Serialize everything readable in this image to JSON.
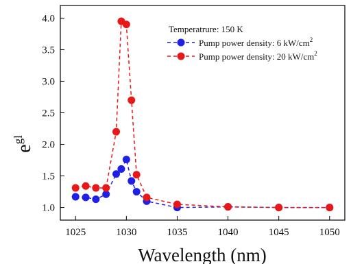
{
  "chart_data": {
    "type": "line",
    "xlabel": "Wavelength (nm)",
    "ylabel": "e",
    "ylabel_superscript": "gl",
    "annotation": "Temperatrure: 150 K",
    "xlim": [
      1023.5,
      1051.5
    ],
    "ylim": [
      0.8,
      4.2
    ],
    "xticks": [
      1025,
      1030,
      1035,
      1040,
      1045,
      1050
    ],
    "yticks": [
      1.0,
      1.5,
      2.0,
      2.5,
      3.0,
      3.5,
      4.0
    ],
    "xtick_labels": [
      "1025",
      "1030",
      "1035",
      "1040",
      "1045",
      "1050"
    ],
    "ytick_labels": [
      "1.0",
      "1.5",
      "2.0",
      "2.5",
      "3.0",
      "3.5",
      "4.0"
    ],
    "grid": false,
    "legend_position": "top-right",
    "series": [
      {
        "name": "Pump power density: 6 kW/cm",
        "name_superscript": "2",
        "color": "#1f1fe6",
        "x": [
          1025,
          1026,
          1027,
          1028,
          1029,
          1029.5,
          1030,
          1030.5,
          1031,
          1032,
          1035,
          1040,
          1045,
          1050
        ],
        "y": [
          1.17,
          1.16,
          1.13,
          1.21,
          1.53,
          1.61,
          1.76,
          1.42,
          1.25,
          1.1,
          1.0,
          1.01,
          1.0,
          1.0
        ]
      },
      {
        "name": "Pump power density: 20 kW/cm",
        "name_superscript": "2",
        "color": "#e81818",
        "x": [
          1025,
          1026,
          1027,
          1028,
          1029,
          1029.5,
          1030,
          1030.5,
          1031,
          1032,
          1035,
          1040,
          1045,
          1050
        ],
        "y": [
          1.31,
          1.34,
          1.31,
          1.31,
          2.2,
          3.95,
          3.9,
          2.7,
          1.52,
          1.16,
          1.05,
          1.01,
          1.0,
          1.0
        ]
      }
    ]
  }
}
